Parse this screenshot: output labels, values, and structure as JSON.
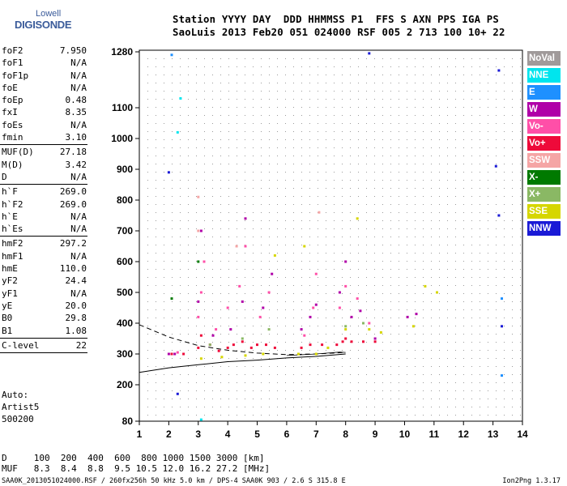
{
  "logo": {
    "line1": "Lowell",
    "line2": "DIGISONDE"
  },
  "header": {
    "line1": "Station YYYY DAY  DDD HHMMSS P1  FFS S AXN PPS IGA PS",
    "line2": "SaoLuis 2013 Feb20 051 024000 RSF 005 2 713 100 10+ 22"
  },
  "params": [
    {
      "k": "foF2",
      "v": "7.950"
    },
    {
      "k": "foF1",
      "v": "N/A"
    },
    {
      "k": "foF1p",
      "v": "N/A"
    },
    {
      "k": "foE",
      "v": "N/A"
    },
    {
      "k": "foEp",
      "v": "0.48"
    },
    {
      "k": "fxI",
      "v": "8.35"
    },
    {
      "k": "foEs",
      "v": "N/A"
    },
    {
      "k": "fmin",
      "v": "3.10"
    },
    {
      "sep": true
    },
    {
      "k": "MUF(D)",
      "v": "27.18"
    },
    {
      "k": "M(D)",
      "v": "3.42"
    },
    {
      "k": "D",
      "v": "N/A"
    },
    {
      "sep": true
    },
    {
      "k": "h`F",
      "v": "269.0"
    },
    {
      "k": "h`F2",
      "v": "269.0"
    },
    {
      "k": "h`E",
      "v": "N/A"
    },
    {
      "k": "h`Es",
      "v": "N/A"
    },
    {
      "sep": true
    },
    {
      "k": "hmF2",
      "v": "297.2"
    },
    {
      "k": "hmF1",
      "v": "N/A"
    },
    {
      "k": "hmE",
      "v": "110.0"
    },
    {
      "k": "yF2",
      "v": "24.4"
    },
    {
      "k": "yF1",
      "v": "N/A"
    },
    {
      "k": "yE",
      "v": "20.0"
    },
    {
      "k": "B0",
      "v": "29.8"
    },
    {
      "k": "B1",
      "v": "1.08"
    },
    {
      "sep": true
    },
    {
      "k": "C-level",
      "v": "22"
    },
    {
      "sep": true
    }
  ],
  "auto": [
    "Auto:",
    "Artist5",
    "500200"
  ],
  "legend": [
    {
      "label": "NoVal",
      "color": "#a09a9a"
    },
    {
      "label": "NNE",
      "color": "#00e5ee"
    },
    {
      "label": "E",
      "color": "#1e90ff"
    },
    {
      "label": "W",
      "color": "#b000a8"
    },
    {
      "label": "Vo-",
      "color": "#ff4fa8"
    },
    {
      "label": "Vo+",
      "color": "#ee0a3a"
    },
    {
      "label": "SSW",
      "color": "#f5a5a5"
    },
    {
      "label": "X-",
      "color": "#007a00"
    },
    {
      "label": "X+",
      "color": "#8ab864"
    },
    {
      "label": "SSE",
      "color": "#d6d600"
    },
    {
      "label": "NNW",
      "color": "#1a1ad6"
    }
  ],
  "footer": {
    "dist": "D     100  200  400  600  800 1000 1500 3000 [km]",
    "muf": "MUF   8.3  8.4  8.8  9.5 10.5 12.0 16.2 27.2 [MHz]",
    "file": "SAA0K_2013051024000.RSF / 260fx256h 50 kHz 5.0 km / DPS-4 SAA0K 903 / 2.6 S 315.8 E",
    "version": "Ion2Png 1.3.17"
  },
  "chart_data": {
    "type": "scatter",
    "xlabel": "",
    "ylabel": "",
    "xlim": [
      1,
      14
    ],
    "ylim": [
      80,
      1300
    ],
    "x_ticks": [
      1,
      2,
      3,
      4,
      5,
      6,
      7,
      8,
      9,
      10,
      11,
      12,
      13,
      14
    ],
    "y_ticks": [
      80,
      200,
      300,
      400,
      500,
      600,
      700,
      800,
      900,
      1000,
      1100,
      1280
    ],
    "grid": true,
    "series": [
      {
        "name": "Vo+",
        "color": "#ee0a3a",
        "points": [
          [
            2.1,
            300
          ],
          [
            2.5,
            300
          ],
          [
            3.0,
            320
          ],
          [
            3.1,
            360
          ],
          [
            3.4,
            330
          ],
          [
            3.7,
            310
          ],
          [
            4.0,
            320
          ],
          [
            4.2,
            330
          ],
          [
            4.5,
            340
          ],
          [
            4.8,
            320
          ],
          [
            5.0,
            330
          ],
          [
            5.3,
            330
          ],
          [
            5.6,
            320
          ],
          [
            6.5,
            320
          ],
          [
            6.8,
            330
          ],
          [
            7.2,
            330
          ],
          [
            7.7,
            330
          ],
          [
            7.9,
            340
          ],
          [
            8.0,
            350
          ],
          [
            8.2,
            340
          ],
          [
            8.6,
            340
          ],
          [
            9.0,
            340
          ]
        ]
      },
      {
        "name": "Vo-",
        "color": "#ff4fa8",
        "points": [
          [
            2.3,
            305
          ],
          [
            3.0,
            420
          ],
          [
            3.1,
            500
          ],
          [
            3.2,
            600
          ],
          [
            3.6,
            380
          ],
          [
            4.0,
            450
          ],
          [
            4.4,
            520
          ],
          [
            4.6,
            650
          ],
          [
            5.1,
            420
          ],
          [
            5.4,
            500
          ],
          [
            6.6,
            360
          ],
          [
            6.9,
            450
          ],
          [
            7.0,
            560
          ],
          [
            7.8,
            450
          ],
          [
            8.0,
            520
          ],
          [
            8.4,
            480
          ],
          [
            8.8,
            400
          ]
        ]
      },
      {
        "name": "W",
        "color": "#b000a8",
        "points": [
          [
            2.0,
            300
          ],
          [
            2.2,
            300
          ],
          [
            3.0,
            470
          ],
          [
            3.1,
            700
          ],
          [
            3.5,
            360
          ],
          [
            4.1,
            380
          ],
          [
            4.5,
            470
          ],
          [
            4.6,
            740
          ],
          [
            5.2,
            450
          ],
          [
            5.5,
            560
          ],
          [
            6.5,
            380
          ],
          [
            6.8,
            420
          ],
          [
            7.0,
            460
          ],
          [
            7.8,
            500
          ],
          [
            8.0,
            600
          ],
          [
            8.2,
            420
          ],
          [
            8.5,
            440
          ],
          [
            9.0,
            350
          ],
          [
            10.1,
            420
          ],
          [
            10.4,
            430
          ]
        ]
      },
      {
        "name": "SSE",
        "color": "#d6d600",
        "points": [
          [
            3.1,
            285
          ],
          [
            3.8,
            290
          ],
          [
            4.6,
            295
          ],
          [
            5.2,
            300
          ],
          [
            5.6,
            620
          ],
          [
            6.4,
            300
          ],
          [
            6.6,
            650
          ],
          [
            7.0,
            300
          ],
          [
            7.4,
            320
          ],
          [
            8.0,
            380
          ],
          [
            8.4,
            740
          ],
          [
            8.8,
            380
          ],
          [
            9.2,
            370
          ],
          [
            10.3,
            390
          ],
          [
            10.7,
            520
          ],
          [
            11.1,
            500
          ]
        ]
      },
      {
        "name": "X+",
        "color": "#8ab864",
        "points": [
          [
            3.4,
            330
          ],
          [
            4.5,
            350
          ],
          [
            5.4,
            380
          ],
          [
            8.0,
            390
          ],
          [
            8.6,
            400
          ]
        ]
      },
      {
        "name": "X-",
        "color": "#007a00",
        "points": [
          [
            2.1,
            480
          ],
          [
            3.0,
            600
          ]
        ]
      },
      {
        "name": "E",
        "color": "#1e90ff",
        "points": [
          [
            2.1,
            1270
          ],
          [
            13.3,
            480
          ],
          [
            13.3,
            230
          ]
        ]
      },
      {
        "name": "NNE",
        "color": "#00e5ee",
        "points": [
          [
            2.3,
            1020
          ],
          [
            2.4,
            1130
          ],
          [
            3.1,
            85
          ]
        ]
      },
      {
        "name": "NNW",
        "color": "#1a1ad6",
        "points": [
          [
            2.0,
            890
          ],
          [
            13.2,
            1220
          ],
          [
            13.1,
            910
          ],
          [
            13.2,
            750
          ],
          [
            13.3,
            390
          ],
          [
            8.8,
            1275
          ],
          [
            2.3,
            170
          ]
        ]
      },
      {
        "name": "SSW",
        "color": "#f5a5a5",
        "points": [
          [
            3.0,
            700
          ],
          [
            3.0,
            810
          ],
          [
            4.3,
            650
          ],
          [
            7.1,
            760
          ]
        ]
      }
    ],
    "traces": [
      {
        "style": "solid",
        "points": [
          [
            1.0,
            240
          ],
          [
            2.0,
            255
          ],
          [
            3.0,
            265
          ],
          [
            4.0,
            275
          ],
          [
            5.0,
            280
          ],
          [
            6.0,
            287
          ],
          [
            7.0,
            292
          ],
          [
            8.0,
            300
          ]
        ]
      },
      {
        "style": "dashed",
        "points": [
          [
            1.0,
            395
          ],
          [
            2.0,
            355
          ],
          [
            3.0,
            327
          ],
          [
            4.0,
            312
          ],
          [
            5.0,
            303
          ],
          [
            6.0,
            298
          ],
          [
            7.0,
            300
          ],
          [
            8.0,
            305
          ]
        ]
      },
      {
        "style": "solid-thin",
        "points": [
          [
            6.0,
            295
          ],
          [
            7.0,
            300
          ],
          [
            7.8,
            306
          ],
          [
            8.0,
            305
          ]
        ]
      }
    ]
  }
}
